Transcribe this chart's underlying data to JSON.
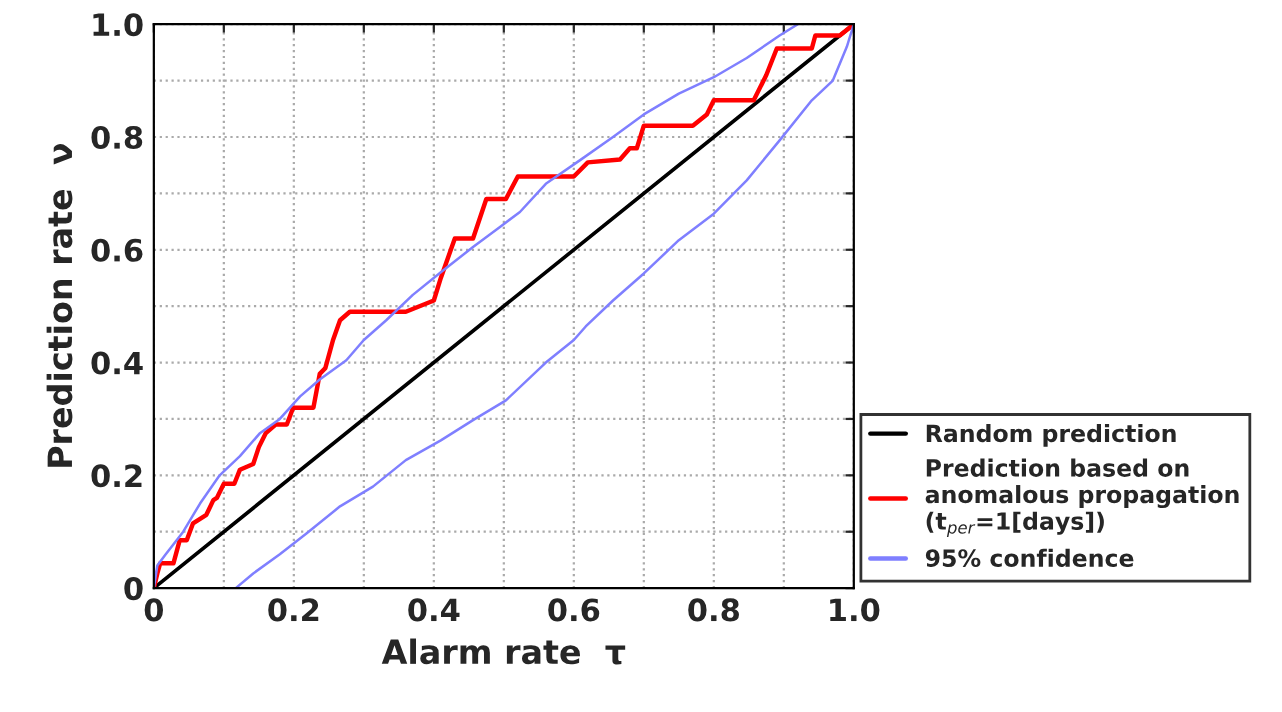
{
  "chart_data": {
    "type": "line",
    "xlabel": "Alarm rate  τ",
    "ylabel": "Prediction rate  ν",
    "xlim": [
      0,
      1.0
    ],
    "ylim": [
      0,
      1.0
    ],
    "xticks": [
      0,
      {
        "value": 0.1,
        "label": null
      },
      0.2,
      {
        "value": 0.3,
        "label": null
      },
      0.4,
      {
        "value": 0.5,
        "label": null
      },
      0.6,
      {
        "value": 0.7,
        "label": null
      },
      0.8,
      {
        "value": 0.9,
        "label": null
      },
      {
        "value": 1.0,
        "label": "1.0"
      }
    ],
    "yticks": [
      0,
      {
        "value": 0.1,
        "label": null
      },
      0.2,
      {
        "value": 0.3,
        "label": null
      },
      0.4,
      {
        "value": 0.5,
        "label": null
      },
      0.6,
      {
        "value": 0.7,
        "label": null
      },
      0.8,
      {
        "value": 0.9,
        "label": null
      },
      {
        "value": 1.0,
        "label": "1.0"
      }
    ],
    "grid": true,
    "legend": "right",
    "line_style": "solid",
    "series": [
      {
        "name": "Random prediction",
        "color": "#000000",
        "x": [
          0,
          1.0
        ],
        "values": [
          0,
          1.0
        ]
      },
      {
        "name": "Prediction based on\nanomalous propagation\n(t$_{per}$=1[days])",
        "color": "#ff0000",
        "x": [
          0,
          0.005,
          0.009,
          0.028,
          0.037,
          0.047,
          0.056,
          0.075,
          0.085,
          0.09,
          0.1,
          0.115,
          0.123,
          0.142,
          0.15,
          0.16,
          0.174,
          0.19,
          0.199,
          0.228,
          0.237,
          0.245,
          0.256,
          0.266,
          0.28,
          0.36,
          0.4,
          0.41,
          0.43,
          0.456,
          0.475,
          0.503,
          0.52,
          0.6,
          0.62,
          0.666,
          0.68,
          0.69,
          0.7,
          0.77,
          0.79,
          0.8,
          0.857,
          0.875,
          0.89,
          0.94,
          0.945,
          0.98,
          1.0
        ],
        "values": [
          0,
          0.026,
          0.044,
          0.044,
          0.085,
          0.085,
          0.115,
          0.13,
          0.156,
          0.16,
          0.185,
          0.185,
          0.21,
          0.22,
          0.25,
          0.275,
          0.29,
          0.29,
          0.32,
          0.32,
          0.38,
          0.39,
          0.44,
          0.475,
          0.49,
          0.49,
          0.51,
          0.55,
          0.62,
          0.62,
          0.69,
          0.69,
          0.73,
          0.73,
          0.755,
          0.76,
          0.78,
          0.78,
          0.82,
          0.82,
          0.84,
          0.865,
          0.865,
          0.91,
          0.957,
          0.957,
          0.98,
          0.98,
          1.0
        ]
      },
      {
        "name": "95% confidence",
        "color": "#7f7fff",
        "x": [
          0,
          0.005,
          0.017,
          0.042,
          0.066,
          0.094,
          0.123,
          0.151,
          0.18,
          0.209,
          0.237,
          0.275,
          0.3,
          0.332,
          0.37,
          0.41,
          0.456,
          0.494,
          0.523,
          0.56,
          0.609,
          0.656,
          0.7,
          0.75,
          0.8,
          0.847,
          0.894,
          0.92
        ],
        "values": [
          0,
          0.04,
          0.06,
          0.1,
          0.15,
          0.2,
          0.234,
          0.274,
          0.3,
          0.34,
          0.37,
          0.404,
          0.44,
          0.475,
          0.52,
          0.56,
          0.605,
          0.64,
          0.667,
          0.717,
          0.759,
          0.8,
          0.84,
          0.877,
          0.906,
          0.94,
          0.98,
          1.0
        ]
      },
      {
        "color": "#7f7fff",
        "x": [
          0.117,
          0.142,
          0.18,
          0.218,
          0.266,
          0.313,
          0.36,
          0.41,
          0.456,
          0.503,
          0.56,
          0.6,
          0.617,
          0.656,
          0.7,
          0.75,
          0.8,
          0.847,
          0.894,
          0.94,
          0.97,
          0.99,
          1.0
        ],
        "values": [
          0,
          0.026,
          0.06,
          0.097,
          0.145,
          0.18,
          0.227,
          0.262,
          0.298,
          0.333,
          0.4,
          0.44,
          0.464,
          0.51,
          0.558,
          0.617,
          0.664,
          0.723,
          0.794,
          0.865,
          0.9,
          0.96,
          1.0
        ]
      }
    ]
  }
}
